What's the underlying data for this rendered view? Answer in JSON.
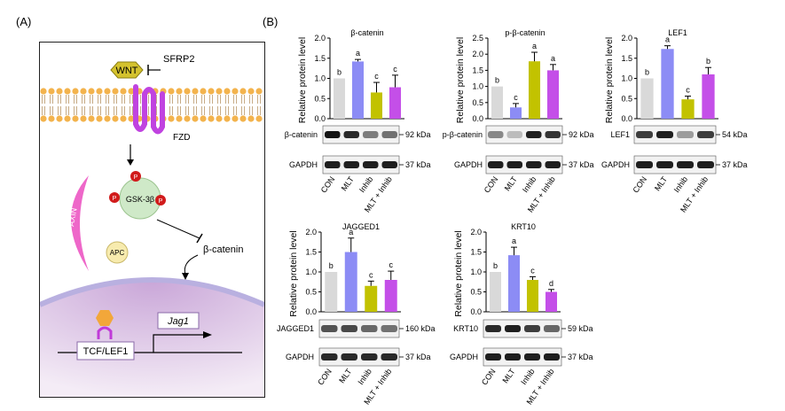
{
  "panel_a": {
    "label": "(A)",
    "wnt": "WNT",
    "sfrp2": "SFRP2",
    "fzd": "FZD",
    "p": "P",
    "gsk3b": "GSK-3β",
    "axin": "AXIN",
    "apc": "APC",
    "beta_catenin": "β-catenin",
    "tcf_lef1": "TCF/LEF1",
    "jag1": "Jag1"
  },
  "panel_b": {
    "label": "(B)"
  },
  "colors": {
    "CON": "#d9d9d9",
    "MLT": "#8c8cf5",
    "Inhib": "#c2c200",
    "MLT + Inhib": "#c44fe8"
  },
  "chart_data": [
    {
      "type": "bar",
      "title": "β-catenin",
      "ylabel": "Relative protein level",
      "categories": [
        "CON",
        "MLT",
        "Inhib",
        "MLT + Inhib"
      ],
      "values": [
        1.0,
        1.42,
        0.65,
        0.78
      ],
      "errors": [
        0.0,
        0.05,
        0.25,
        0.3
      ],
      "letters": [
        "b",
        "a",
        "c",
        "c"
      ],
      "ylim": [
        0,
        2.0
      ],
      "yticks": [
        "0.0",
        "0.5",
        "1.0",
        "1.5",
        "2.0"
      ],
      "blots": [
        {
          "name": "β-catenin",
          "kda": "92 kDa"
        },
        {
          "name": "GAPDH",
          "kda": "37 kDa"
        }
      ]
    },
    {
      "type": "bar",
      "title": "p-β-catenin",
      "ylabel": "Relative protein level",
      "categories": [
        "CON",
        "MLT",
        "Inhib",
        "MLT + Inhib"
      ],
      "values": [
        1.0,
        0.35,
        1.78,
        1.5
      ],
      "errors": [
        0.0,
        0.12,
        0.28,
        0.18
      ],
      "letters": [
        "b",
        "c",
        "a",
        "a"
      ],
      "ylim": [
        0,
        2.5
      ],
      "yticks": [
        "0.0",
        "0.5",
        "1.0",
        "1.5",
        "2.0",
        "2.5"
      ],
      "blots": [
        {
          "name": "p-β-catenin",
          "kda": "92 kDa"
        },
        {
          "name": "GAPDH",
          "kda": "37 kDa"
        }
      ]
    },
    {
      "type": "bar",
      "title": "LEF1",
      "ylabel": "Relative protein level",
      "categories": [
        "CON",
        "MLT",
        "Inhib",
        "MLT + Inhib"
      ],
      "values": [
        1.0,
        1.73,
        0.48,
        1.1
      ],
      "errors": [
        0.0,
        0.08,
        0.08,
        0.17
      ],
      "letters": [
        "b",
        "a",
        "c",
        "b"
      ],
      "ylim": [
        0,
        2.0
      ],
      "yticks": [
        "0.0",
        "0.5",
        "1.0",
        "1.5",
        "2.0"
      ],
      "blots": [
        {
          "name": "LEF1",
          "kda": "54 kDa"
        },
        {
          "name": "GAPDH",
          "kda": "37 kDa"
        }
      ]
    },
    {
      "type": "bar",
      "title": "JAGGED1",
      "ylabel": "Relative protein level",
      "categories": [
        "CON",
        "MLT",
        "Inhib",
        "MLT + Inhib"
      ],
      "values": [
        1.0,
        1.5,
        0.65,
        0.8
      ],
      "errors": [
        0.0,
        0.35,
        0.12,
        0.22
      ],
      "letters": [
        "b",
        "a",
        "c",
        "c"
      ],
      "ylim": [
        0,
        2.0
      ],
      "yticks": [
        "0.0",
        "0.5",
        "1.0",
        "1.5",
        "2.0"
      ],
      "blots": [
        {
          "name": "JAGGED1",
          "kda": "160 kDa"
        },
        {
          "name": "GAPDH",
          "kda": "37 kDa"
        }
      ]
    },
    {
      "type": "bar",
      "title": "KRT10",
      "ylabel": "Relative protein level",
      "categories": [
        "CON",
        "MLT",
        "Inhib",
        "MLT + Inhib"
      ],
      "values": [
        1.0,
        1.42,
        0.8,
        0.5
      ],
      "errors": [
        0.0,
        0.2,
        0.08,
        0.06
      ],
      "letters": [
        "b",
        "a",
        "c",
        "d"
      ],
      "ylim": [
        0,
        2.0
      ],
      "yticks": [
        "0.0",
        "0.5",
        "1.0",
        "1.5",
        "2.0"
      ],
      "blots": [
        {
          "name": "KRT10",
          "kda": "59 kDa"
        },
        {
          "name": "GAPDH",
          "kda": "37 kDa"
        }
      ]
    }
  ]
}
